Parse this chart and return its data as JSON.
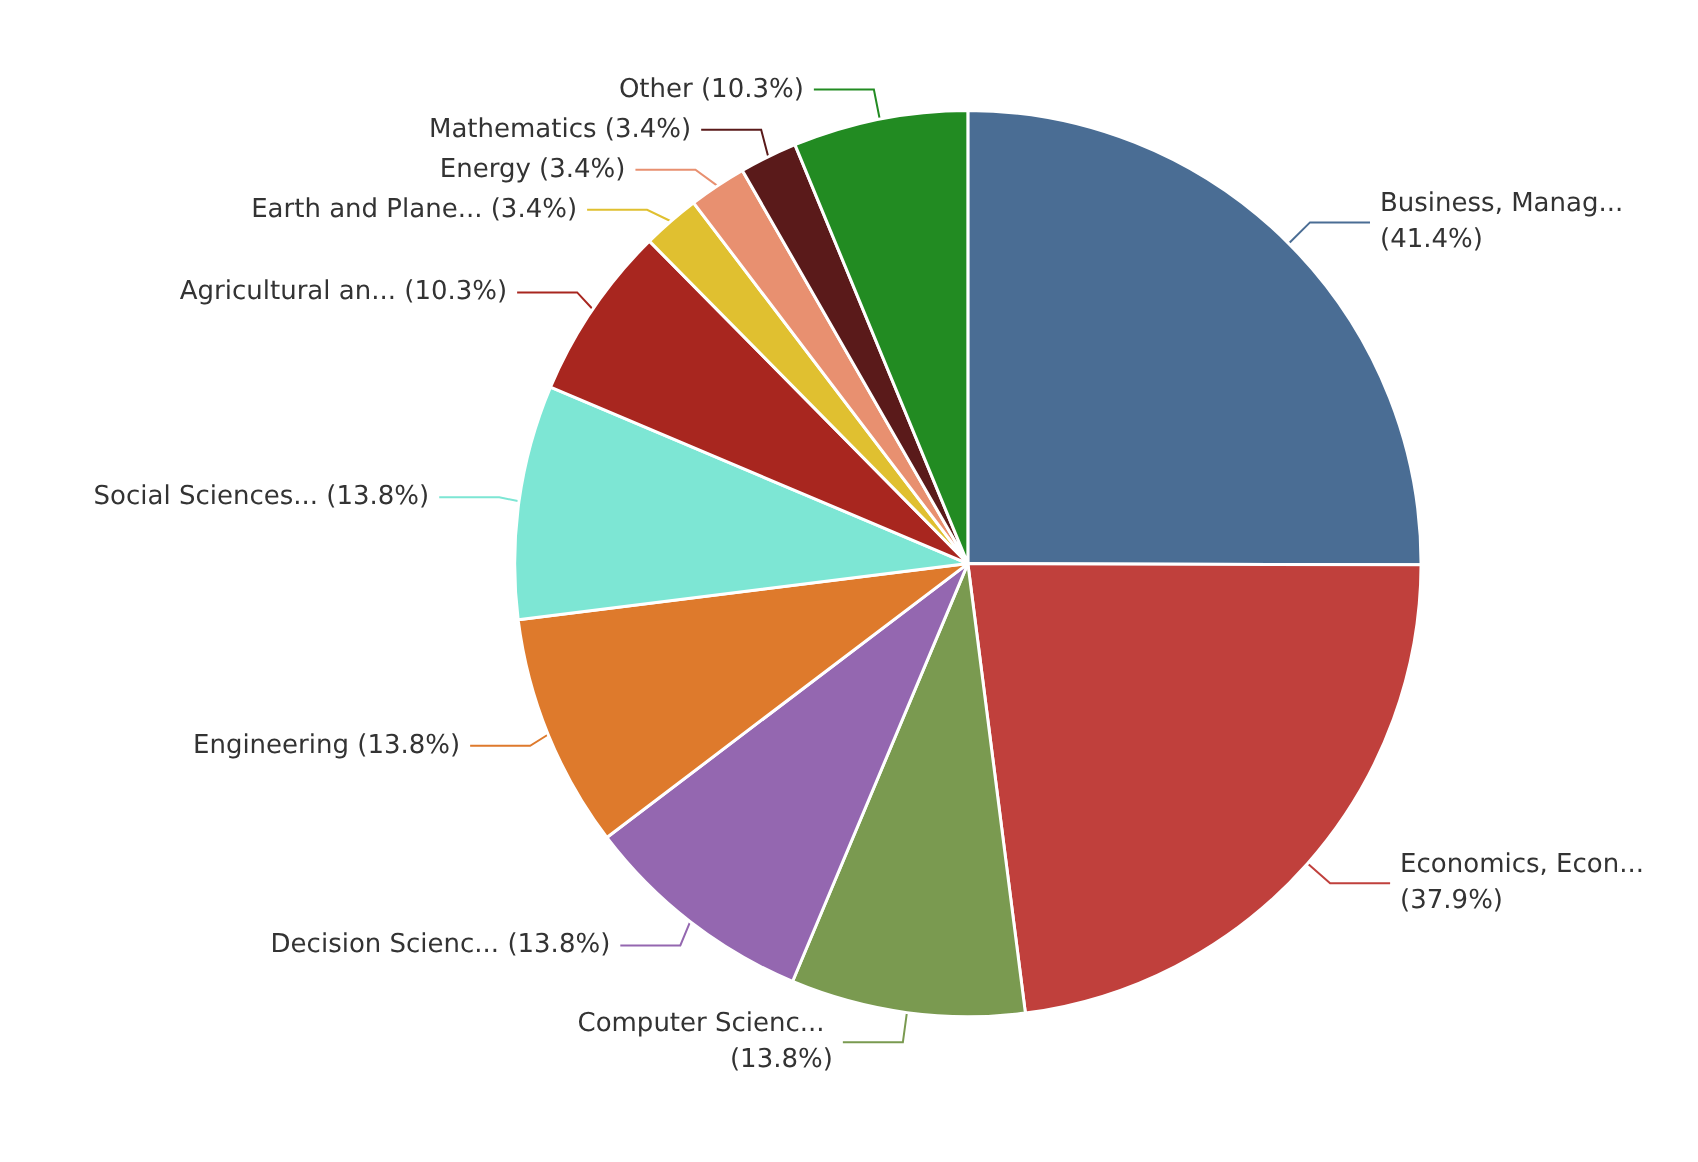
{
  "chart_data": {
    "type": "pie",
    "categories": [
      "Business, Manag...",
      "Economics, Econ...",
      "Computer Scienc...",
      "Decision Scienc...",
      "Engineering",
      "Social Sciences...",
      "Agricultural an...",
      "Earth and Plane...",
      "Energy",
      "Mathematics",
      "Other"
    ],
    "values": [
      41.4,
      37.9,
      13.8,
      13.8,
      13.8,
      13.8,
      10.3,
      3.4,
      3.4,
      3.4,
      10.3
    ],
    "value_labels": [
      "(41.4%)",
      "(37.9%)",
      "(13.8%)",
      "(13.8%)",
      "(13.8%)",
      "(13.8%)",
      "(10.3%)",
      "(3.4%)",
      "(3.4%)",
      "(3.4%)",
      "(10.3%)"
    ],
    "colors": [
      "#4a6d94",
      "#c0403c",
      "#7a9a50",
      "#9467b0",
      "#de7a2c",
      "#7de6d4",
      "#a8261f",
      "#e0c030",
      "#e89070",
      "#5a1a1a",
      "#228b22"
    ],
    "legend": false
  }
}
